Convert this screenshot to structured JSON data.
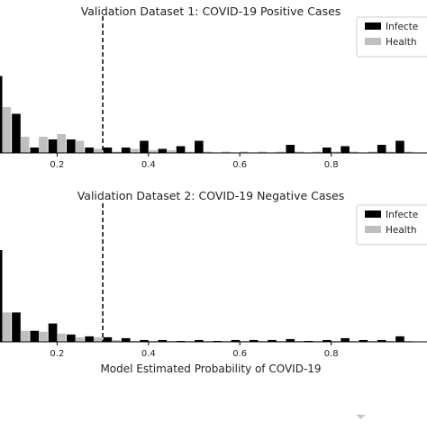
{
  "shared_xlabel": "Model Estimated Probability of COVID-19",
  "chart_data": [
    {
      "type": "bar",
      "title": "Validation Dataset 1: COVID-19 Positive Cases",
      "xlabel": "",
      "ylabel": "",
      "xlim": [
        0.075,
        0.99
      ],
      "xticks": [
        0.2,
        0.4,
        0.6,
        0.8
      ],
      "xtick_labels": [
        "0.2",
        "0.4",
        "0.6",
        "0.8"
      ],
      "threshold": 0.3,
      "legend_position": "top-right",
      "ylim": [
        0,
        1
      ],
      "bin_centers": [
        0.08,
        0.12,
        0.16,
        0.2,
        0.24,
        0.28,
        0.32,
        0.36,
        0.4,
        0.44,
        0.48,
        0.52,
        0.56,
        0.6,
        0.64,
        0.68,
        0.72,
        0.76,
        0.8,
        0.84,
        0.88,
        0.92,
        0.96
      ],
      "series": [
        {
          "name": "Infecte",
          "color": "#000000",
          "values": [
            0.57,
            0.29,
            0.04,
            0.1,
            0.1,
            0.04,
            0.04,
            0.04,
            0.09,
            0.03,
            0.05,
            0.09,
            0.0,
            0.0,
            0.0,
            0.0,
            0.06,
            0.0,
            0.04,
            0.05,
            0.0,
            0.06,
            0.09
          ]
        },
        {
          "name": "Health",
          "color": "#bfbfbf",
          "values": [
            0.34,
            0.12,
            0.12,
            0.14,
            0.09,
            0.03,
            0.01,
            0.03,
            0.02,
            0.02,
            0.01,
            0.01,
            0.01,
            0.01,
            0.01,
            0.01,
            0.01,
            0.01,
            0.01,
            0.01,
            0.01,
            0.01,
            0.01
          ]
        }
      ]
    },
    {
      "type": "bar",
      "title": "Validation Dataset 2: COVID-19 Negative Cases",
      "xlabel": "Model Estimated Probability of COVID-19",
      "ylabel": "",
      "xlim": [
        0.075,
        0.99
      ],
      "xticks": [
        0.2,
        0.4,
        0.6,
        0.8
      ],
      "xtick_labels": [
        "0.2",
        "0.4",
        "0.6",
        "0.8"
      ],
      "threshold": 0.3,
      "legend_position": "top-right",
      "ylim": [
        0,
        1
      ],
      "bin_centers": [
        0.08,
        0.12,
        0.16,
        0.2,
        0.24,
        0.28,
        0.32,
        0.36,
        0.4,
        0.44,
        0.48,
        0.52,
        0.56,
        0.6,
        0.64,
        0.68,
        0.72,
        0.76,
        0.8,
        0.84,
        0.88,
        0.92,
        0.96
      ],
      "series": [
        {
          "name": "Infecte",
          "color": "#000000",
          "values": [
            1.0,
            0.32,
            0.12,
            0.2,
            0.08,
            0.06,
            0.05,
            0.04,
            0.02,
            0.02,
            0.01,
            0.02,
            0.01,
            0.02,
            0.02,
            0.02,
            0.03,
            0.01,
            0.02,
            0.04,
            0.02,
            0.02,
            0.06
          ]
        },
        {
          "name": "Health",
          "color": "#bfbfbf",
          "values": [
            0.32,
            0.12,
            0.11,
            0.09,
            0.05,
            0.05,
            0.02,
            0.01,
            0.01,
            0.01,
            0.01,
            0.01,
            0.01,
            0.01,
            0.01,
            0.01,
            0.01,
            0.01,
            0.01,
            0.01,
            0.01,
            0.01,
            0.01
          ]
        }
      ]
    }
  ]
}
